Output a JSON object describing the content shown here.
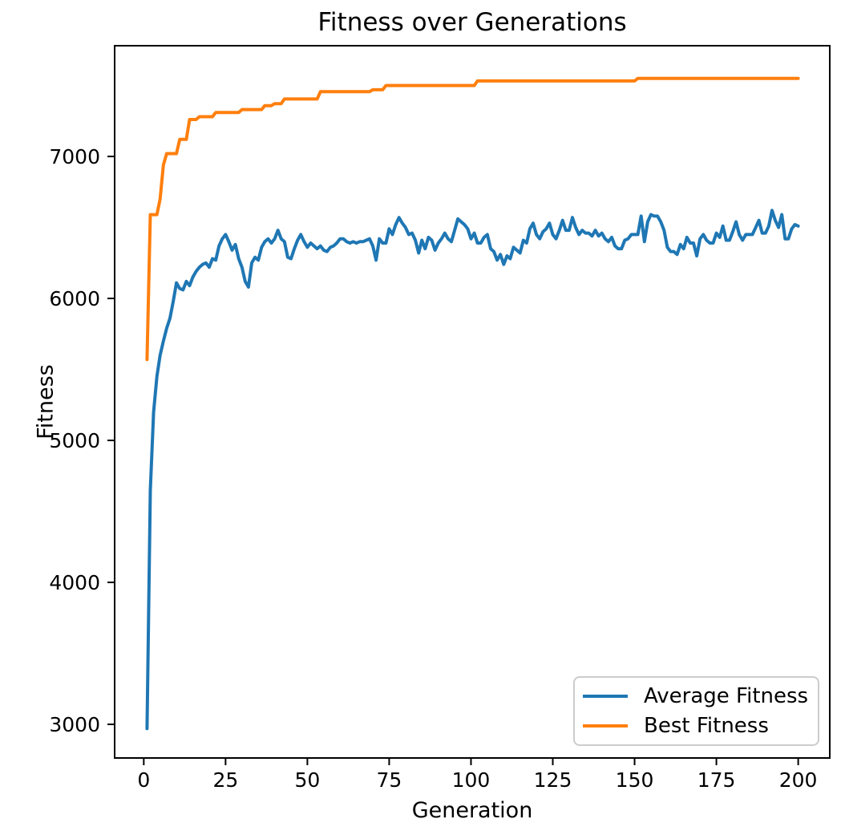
{
  "title": "Fitness over Generations",
  "xlabel": "Generation",
  "ylabel": "Fitness",
  "colors": {
    "average_fitness": "#1f77b4",
    "best_fitness": "#ff7f0e",
    "axis": "#000000",
    "legend_border": "#cccccc",
    "background": "#ffffff"
  },
  "legend": {
    "position": "lower right",
    "items": [
      {
        "label": "Average Fitness",
        "color": "#1f77b4"
      },
      {
        "label": "Best Fitness",
        "color": "#ff7f0e"
      }
    ]
  },
  "chart_data": {
    "type": "line",
    "title": "Fitness over Generations",
    "xlabel": "Generation",
    "ylabel": "Fitness",
    "grid": false,
    "legend_position": "lower right",
    "x_ticks": [
      0,
      25,
      50,
      75,
      100,
      125,
      150,
      175,
      200
    ],
    "y_ticks": [
      3000,
      4000,
      5000,
      6000,
      7000
    ],
    "xlim": [
      -8.9,
      209.65
    ],
    "ylim": [
      2763,
      7780
    ],
    "x": {
      "start": 1,
      "end": 200,
      "step": 1
    },
    "series": [
      {
        "name": "Average Fitness",
        "color": "#1f77b4",
        "values": [
          2970,
          4650,
          5200,
          5450,
          5600,
          5700,
          5790,
          5860,
          5980,
          6110,
          6070,
          6060,
          6120,
          6090,
          6150,
          6190,
          6220,
          6240,
          6250,
          6220,
          6280,
          6270,
          6370,
          6420,
          6450,
          6400,
          6340,
          6380,
          6280,
          6220,
          6120,
          6080,
          6250,
          6290,
          6270,
          6360,
          6400,
          6420,
          6390,
          6420,
          6480,
          6420,
          6400,
          6290,
          6280,
          6350,
          6410,
          6450,
          6400,
          6360,
          6390,
          6370,
          6350,
          6370,
          6340,
          6330,
          6360,
          6370,
          6390,
          6420,
          6420,
          6400,
          6390,
          6400,
          6390,
          6400,
          6400,
          6410,
          6420,
          6370,
          6270,
          6420,
          6390,
          6390,
          6490,
          6450,
          6520,
          6570,
          6530,
          6500,
          6450,
          6460,
          6410,
          6320,
          6410,
          6350,
          6430,
          6410,
          6340,
          6390,
          6420,
          6460,
          6420,
          6400,
          6480,
          6560,
          6540,
          6520,
          6490,
          6420,
          6460,
          6390,
          6390,
          6430,
          6450,
          6350,
          6330,
          6270,
          6310,
          6240,
          6300,
          6280,
          6360,
          6340,
          6320,
          6410,
          6390,
          6490,
          6530,
          6450,
          6420,
          6470,
          6490,
          6530,
          6450,
          6420,
          6480,
          6550,
          6480,
          6480,
          6570,
          6500,
          6450,
          6480,
          6460,
          6460,
          6440,
          6480,
          6440,
          6460,
          6420,
          6400,
          6430,
          6370,
          6350,
          6350,
          6410,
          6420,
          6450,
          6450,
          6450,
          6580,
          6400,
          6540,
          6590,
          6580,
          6580,
          6540,
          6480,
          6360,
          6330,
          6330,
          6310,
          6380,
          6350,
          6430,
          6390,
          6390,
          6300,
          6420,
          6450,
          6410,
          6390,
          6390,
          6460,
          6430,
          6510,
          6410,
          6410,
          6470,
          6540,
          6450,
          6410,
          6450,
          6450,
          6450,
          6500,
          6550,
          6460,
          6460,
          6510,
          6620,
          6550,
          6500,
          6590,
          6420,
          6420,
          6490,
          6520,
          6510
        ]
      },
      {
        "name": "Best Fitness",
        "color": "#ff7f0e",
        "values": [
          5570,
          6590,
          6590,
          6590,
          6700,
          6940,
          7020,
          7020,
          7020,
          7020,
          7120,
          7120,
          7120,
          7260,
          7260,
          7260,
          7280,
          7280,
          7280,
          7280,
          7280,
          7310,
          7310,
          7310,
          7310,
          7310,
          7310,
          7310,
          7310,
          7330,
          7330,
          7330,
          7330,
          7330,
          7330,
          7330,
          7358,
          7358,
          7358,
          7372,
          7372,
          7372,
          7405,
          7405,
          7405,
          7405,
          7405,
          7405,
          7405,
          7405,
          7405,
          7405,
          7405,
          7456,
          7456,
          7456,
          7456,
          7456,
          7456,
          7456,
          7456,
          7456,
          7456,
          7456,
          7456,
          7456,
          7456,
          7456,
          7456,
          7470,
          7470,
          7470,
          7470,
          7500,
          7500,
          7500,
          7500,
          7500,
          7500,
          7500,
          7500,
          7500,
          7500,
          7500,
          7500,
          7500,
          7500,
          7500,
          7500,
          7500,
          7500,
          7500,
          7500,
          7500,
          7500,
          7500,
          7500,
          7500,
          7500,
          7500,
          7500,
          7532,
          7532,
          7532,
          7532,
          7532,
          7532,
          7532,
          7532,
          7532,
          7532,
          7532,
          7532,
          7532,
          7532,
          7532,
          7532,
          7532,
          7532,
          7532,
          7532,
          7532,
          7532,
          7532,
          7532,
          7532,
          7532,
          7532,
          7532,
          7532,
          7532,
          7532,
          7532,
          7532,
          7532,
          7532,
          7532,
          7532,
          7532,
          7532,
          7532,
          7532,
          7532,
          7532,
          7532,
          7532,
          7532,
          7532,
          7532,
          7532,
          7550,
          7550,
          7550,
          7550,
          7550,
          7550,
          7550,
          7550,
          7550,
          7550,
          7550,
          7550,
          7550,
          7550,
          7550,
          7550,
          7550,
          7550,
          7550,
          7550,
          7550,
          7550,
          7550,
          7550,
          7550,
          7550,
          7550,
          7550,
          7550,
          7550,
          7550,
          7550,
          7550,
          7550,
          7550,
          7550,
          7550,
          7550,
          7550,
          7550,
          7550,
          7550,
          7550,
          7550,
          7550,
          7550,
          7550,
          7550,
          7550,
          7550
        ]
      }
    ]
  }
}
